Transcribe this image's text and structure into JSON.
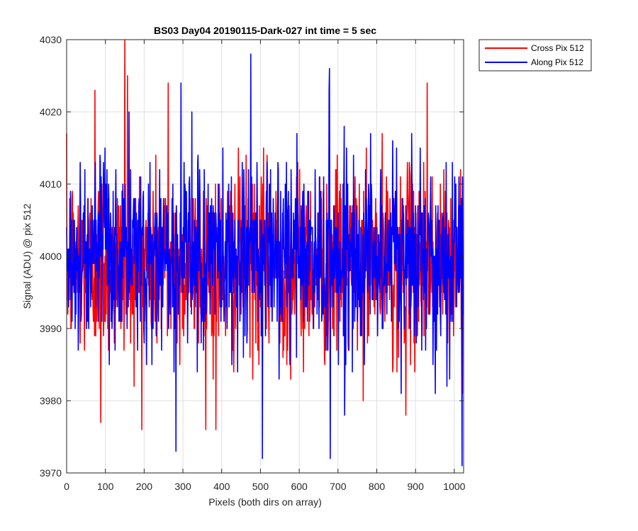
{
  "chart_data": {
    "type": "line",
    "title": "BS03 Day04 20190115-Dark-027 int time = 5 sec",
    "xlabel": "Pixels (both dirs on array)",
    "ylabel": "Signal (ADU) @ pix 512",
    "xlim": [
      0,
      1024
    ],
    "ylim": [
      3970,
      4030
    ],
    "xticks": [
      0,
      100,
      200,
      300,
      400,
      500,
      600,
      700,
      800,
      900,
      1000
    ],
    "yticks": [
      3970,
      3980,
      3990,
      4000,
      4010,
      4020,
      4030
    ],
    "grid": true,
    "legend_position": "outside top-right",
    "n_points": 1024,
    "x_step": 1,
    "series": [
      {
        "name": "Cross Pix 512",
        "color": "#ff0000",
        "mean": 3999,
        "approx_range": [
          3976,
          4030
        ],
        "extremes": [
          {
            "x": 150,
            "y": 4030
          },
          {
            "x": 73,
            "y": 4023
          },
          {
            "x": 157,
            "y": 4025
          },
          {
            "x": 262,
            "y": 4024
          },
          {
            "x": 930,
            "y": 4024
          },
          {
            "x": 88,
            "y": 3977
          },
          {
            "x": 385,
            "y": 3976
          },
          {
            "x": 875,
            "y": 3978
          }
        ]
      },
      {
        "name": "Along Pix 512",
        "color": "#0000ff",
        "mean": 4000,
        "approx_range": [
          3971,
          4028
        ],
        "extremes": [
          {
            "x": 475,
            "y": 4028
          },
          {
            "x": 678,
            "y": 4026
          },
          {
            "x": 295,
            "y": 4024
          },
          {
            "x": 282,
            "y": 3973
          },
          {
            "x": 505,
            "y": 3972
          },
          {
            "x": 680,
            "y": 3972
          },
          {
            "x": 1020,
            "y": 3971
          }
        ]
      }
    ]
  }
}
